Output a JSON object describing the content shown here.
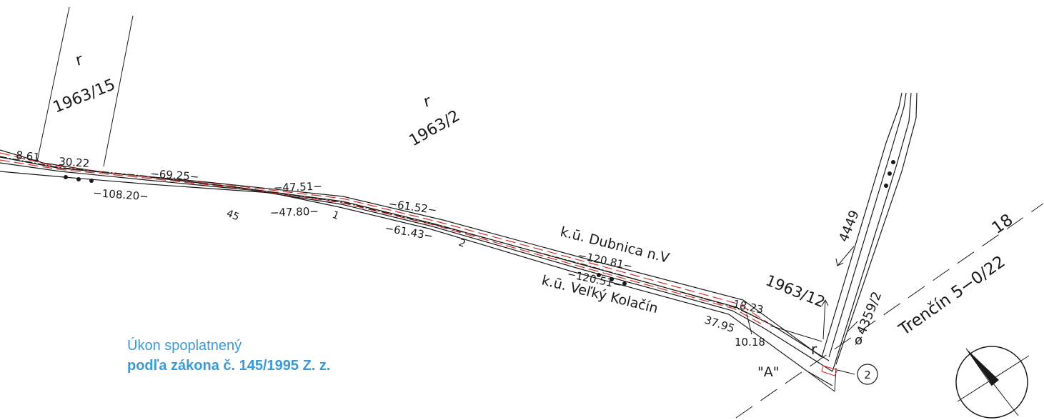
{
  "parcels": {
    "p_1963_15": {
      "mark": "r",
      "number": "1963/15"
    },
    "p_1963_2": {
      "mark": "r",
      "number": "1963/2"
    },
    "p_1963_12": {
      "number": "1963/12",
      "mark": "r"
    },
    "p_4449": {
      "number": "4449"
    },
    "p_4359_2": {
      "number": "4359/2"
    }
  },
  "cadastral_areas": {
    "upper": "k.ū. Dubnica n.V",
    "lower": "k.ū. Veľký Kolačín"
  },
  "distances": {
    "d1": "8.61",
    "d2": "30.22",
    "d3": "−69.25−",
    "d4": "−108.20−",
    "d5": "−47.51−",
    "d6": "−47.80−",
    "d7": "−61.52−",
    "d8": "−61.43−",
    "d9": "−120.81−",
    "d10": "−120.51−",
    "d11": "18.23",
    "d12": "37.95",
    "d13": "10.18"
  },
  "point_numbers": {
    "n45": "45",
    "n1": "1",
    "n2": "2"
  },
  "point_label": "\"A\"",
  "circle_marker": "2",
  "map_sheet": {
    "number": "18",
    "name": "Trenčín 5−0/22"
  },
  "stamp": {
    "line1": "Úkon spoplatnený",
    "line2": "podľa zákona č. 145/1995 Z. z."
  },
  "colors": {
    "ink": "#1a1a1a",
    "boundary_red": "#d8302a",
    "stamp_blue": "#3a9ad9"
  }
}
